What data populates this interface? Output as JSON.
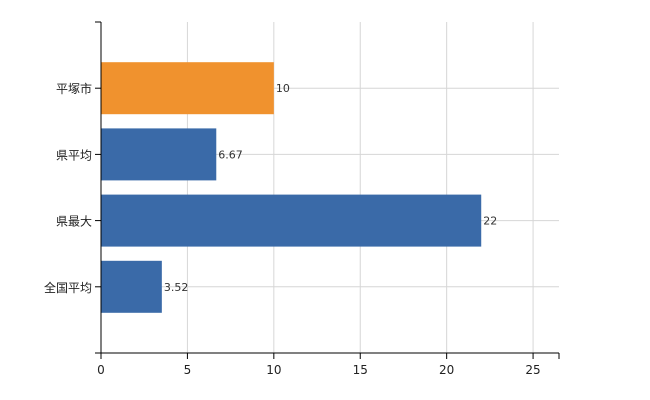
{
  "chart_data": {
    "type": "bar",
    "orientation": "horizontal",
    "categories": [
      "平塚市",
      "県平均",
      "県最大",
      "全国平均"
    ],
    "values": [
      10,
      6.67,
      22,
      3.52
    ],
    "value_labels": [
      "10",
      "6.67",
      "22",
      "3.52"
    ],
    "bar_colors": [
      "#f0922e",
      "#3a6aa8",
      "#3a6aa8",
      "#3a6aa8"
    ],
    "xlim": [
      0,
      26.5
    ],
    "x_ticks": [
      0,
      5,
      10,
      15,
      20,
      25
    ],
    "x_tick_labels": [
      "0",
      "5",
      "10",
      "15",
      "20",
      "25"
    ],
    "grid": true,
    "title": "",
    "xlabel": "",
    "ylabel": ""
  }
}
